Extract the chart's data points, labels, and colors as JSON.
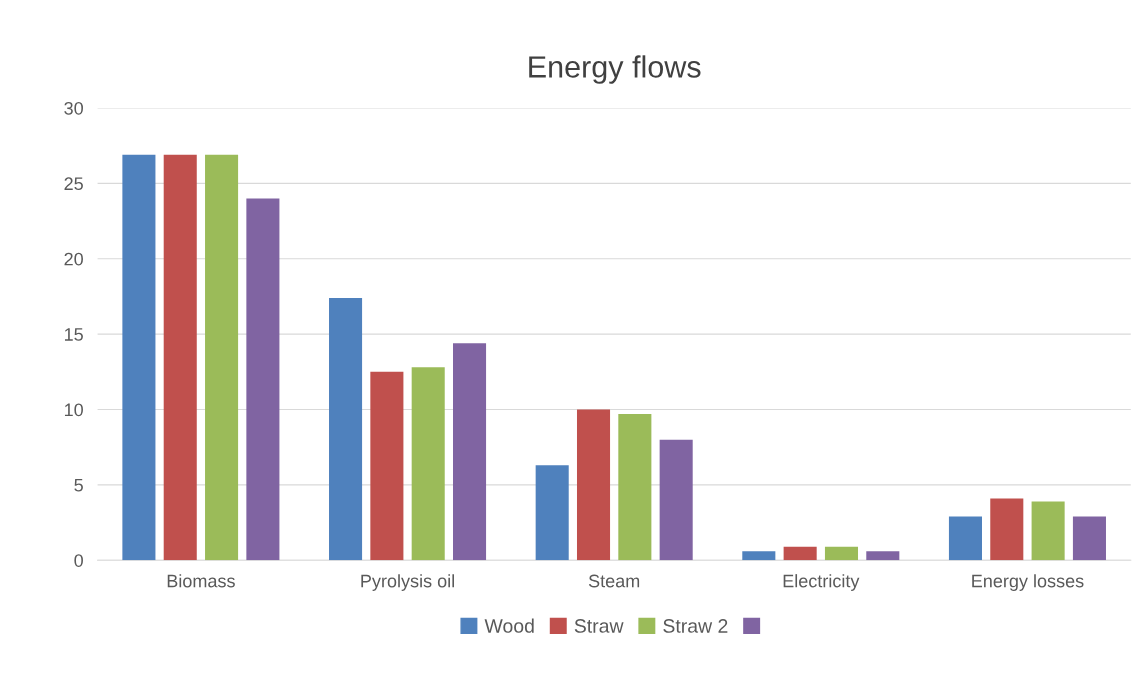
{
  "chart_data": {
    "type": "bar",
    "title": "Energy flows",
    "categories": [
      "Biomass",
      "Pyrolysis oil",
      "Steam",
      "Electricity",
      "Energy losses"
    ],
    "series": [
      {
        "name": "Wood",
        "color": "#4f81bd",
        "values": [
          26.9,
          17.4,
          6.3,
          0.6,
          2.9
        ]
      },
      {
        "name": "Straw",
        "color": "#c0504d",
        "values": [
          26.9,
          12.5,
          10.0,
          0.9,
          4.1
        ]
      },
      {
        "name": "Straw 2",
        "color": "#9bbb59",
        "values": [
          26.9,
          12.8,
          9.7,
          0.9,
          3.9
        ]
      },
      {
        "color": "#8064a2",
        "values": [
          24.0,
          14.4,
          8.0,
          0.6,
          2.9
        ]
      }
    ],
    "ylim": [
      0,
      30
    ],
    "yticks": [
      0,
      5,
      10,
      15,
      20,
      25,
      30
    ],
    "grid": "y",
    "legend": "bottom"
  }
}
